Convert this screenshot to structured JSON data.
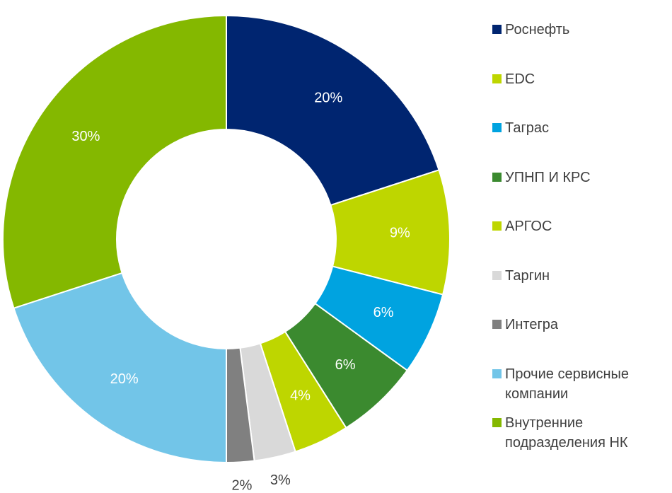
{
  "chart_data": {
    "type": "donut",
    "categories": [
      "Роснефть",
      "EDC",
      "Таграс",
      "УПНП И КРС",
      "АРГОС",
      "Таргин",
      "Интегра",
      "Прочие сервисные компании",
      "Внутренние подразделения НК"
    ],
    "values": [
      20,
      9,
      6,
      6,
      4,
      3,
      2,
      20,
      30
    ],
    "value_labels": [
      "20%",
      "9%",
      "6%",
      "6%",
      "4%",
      "3%",
      "2%",
      "20%",
      "30%"
    ],
    "colors": [
      "#002570",
      "#bed600",
      "#00a3e0",
      "#3b8a2f",
      "#bed600",
      "#d9d9d9",
      "#808080",
      "#72c5e8",
      "#84b800"
    ],
    "legend": "right"
  }
}
